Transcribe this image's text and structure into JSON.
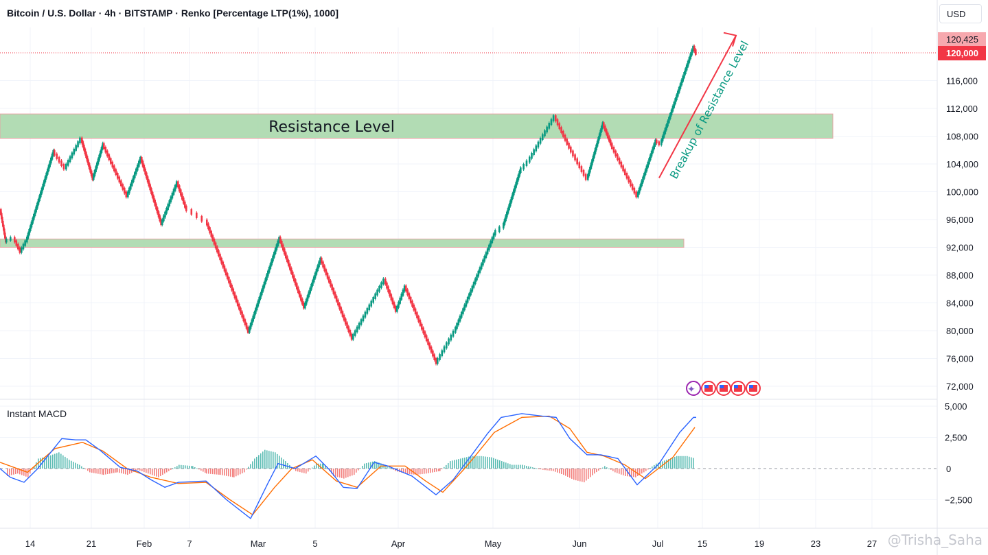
{
  "header": {
    "title": "Bitcoin / U.S. Dollar · 4h · BITSTAMP · Renko [Percentage LTP(1%), 1000]",
    "currency_button": "USD"
  },
  "indicator": {
    "label": "Instant MACD"
  },
  "watermark": "@Trisha_Saha",
  "colors": {
    "up": "#089981",
    "down": "#f23645",
    "zone": "#a5d6a7",
    "macd": "#2962ff",
    "signal": "#ff6d00",
    "arrow": "#f23645"
  },
  "chart_data": {
    "type": "renko",
    "title": "Bitcoin / U.S. Dollar · 4h · BITSTAMP · Renko [Percentage LTP(1%), 1000]",
    "y_axis": {
      "ticks": [
        72000,
        76000,
        80000,
        84000,
        88000,
        92000,
        96000,
        100000,
        104000,
        108000,
        112000,
        116000
      ],
      "labels": [
        "72,000",
        "76,000",
        "80,000",
        "84,000",
        "88,000",
        "92,000",
        "96,000",
        "100,000",
        "104,000",
        "108,000",
        "112,000",
        "116,000"
      ],
      "ylim": [
        71000,
        123500
      ]
    },
    "x_axis": {
      "labels": [
        "14",
        "21",
        "Feb",
        "7",
        "Mar",
        "5",
        "Apr",
        "May",
        "Jun",
        "Jul",
        "15",
        "19",
        "23",
        "27"
      ]
    },
    "price_labels": [
      {
        "value": 120425,
        "text": "120,425"
      },
      {
        "value": 120000,
        "text": "120,000"
      }
    ],
    "path": [
      [
        0,
        97500
      ],
      [
        8,
        93000
      ],
      [
        20,
        93500
      ],
      [
        30,
        91500
      ],
      [
        38,
        93000
      ],
      [
        78,
        106000
      ],
      [
        95,
        103500
      ],
      [
        118,
        107800
      ],
      [
        135,
        102000
      ],
      [
        150,
        107000
      ],
      [
        185,
        99500
      ],
      [
        205,
        105000
      ],
      [
        235,
        95500
      ],
      [
        258,
        101500
      ],
      [
        270,
        98000
      ],
      [
        300,
        96000
      ],
      [
        362,
        80000
      ],
      [
        407,
        93500
      ],
      [
        443,
        83500
      ],
      [
        467,
        90500
      ],
      [
        513,
        79000
      ],
      [
        560,
        87500
      ],
      [
        577,
        83000
      ],
      [
        590,
        86500
      ],
      [
        636,
        75500
      ],
      [
        662,
        80000
      ],
      [
        720,
        94000
      ],
      [
        732,
        95000
      ],
      [
        757,
        103000
      ],
      [
        770,
        104500
      ],
      [
        808,
        111000
      ],
      [
        830,
        106500
      ],
      [
        855,
        102000
      ],
      [
        878,
        110000
      ],
      [
        890,
        107000
      ],
      [
        928,
        99500
      ],
      [
        955,
        107500
      ],
      [
        962,
        107000
      ],
      [
        1010,
        121000
      ],
      [
        1014,
        120000
      ]
    ],
    "zones": [
      {
        "label": "Resistance Level",
        "low": 107700,
        "high": 111200,
        "x_start": 0,
        "x_end": 1213
      },
      {
        "label": "",
        "low": 92000,
        "high": 93200,
        "x_start": 0,
        "x_end": 996
      }
    ],
    "annotations": [
      {
        "text": "Breakup of Resistance Level",
        "type": "arrow",
        "from": [
          960,
          102000
        ],
        "to": [
          1072,
          122500
        ]
      }
    ],
    "macd": {
      "title": "Instant MACD",
      "y_ticks": [
        5000,
        2500,
        0,
        -2500
      ],
      "y_labels": [
        "5,000",
        "2,500",
        "0",
        "−2,500"
      ],
      "ylim": [
        -4200,
        5400
      ],
      "macd_line": [
        [
          0,
          0
        ],
        [
          15,
          -700
        ],
        [
          35,
          -1100
        ],
        [
          55,
          0
        ],
        [
          90,
          2400
        ],
        [
          110,
          2300
        ],
        [
          125,
          2300
        ],
        [
          145,
          1500
        ],
        [
          175,
          100
        ],
        [
          200,
          -200
        ],
        [
          220,
          -900
        ],
        [
          240,
          -1500
        ],
        [
          260,
          -1100
        ],
        [
          300,
          -1000
        ],
        [
          330,
          -2500
        ],
        [
          365,
          -4000
        ],
        [
          390,
          -1200
        ],
        [
          405,
          400
        ],
        [
          430,
          0
        ],
        [
          460,
          1000
        ],
        [
          480,
          -100
        ],
        [
          500,
          -1500
        ],
        [
          520,
          -1600
        ],
        [
          545,
          500
        ],
        [
          565,
          200
        ],
        [
          600,
          -600
        ],
        [
          635,
          -2100
        ],
        [
          660,
          -900
        ],
        [
          690,
          1300
        ],
        [
          710,
          2800
        ],
        [
          730,
          4100
        ],
        [
          760,
          4400
        ],
        [
          790,
          4200
        ],
        [
          810,
          4100
        ],
        [
          830,
          2400
        ],
        [
          855,
          1100
        ],
        [
          875,
          1100
        ],
        [
          900,
          800
        ],
        [
          928,
          -1300
        ],
        [
          960,
          400
        ],
        [
          990,
          2900
        ],
        [
          1010,
          4100
        ],
        [
          1014,
          4100
        ]
      ],
      "signal_line": [
        [
          0,
          500
        ],
        [
          40,
          -300
        ],
        [
          80,
          1600
        ],
        [
          120,
          2100
        ],
        [
          150,
          1400
        ],
        [
          185,
          0
        ],
        [
          220,
          -700
        ],
        [
          260,
          -1200
        ],
        [
          300,
          -1100
        ],
        [
          335,
          -2500
        ],
        [
          368,
          -3700
        ],
        [
          400,
          -1500
        ],
        [
          425,
          0
        ],
        [
          455,
          700
        ],
        [
          490,
          -1000
        ],
        [
          520,
          -1500
        ],
        [
          555,
          200
        ],
        [
          590,
          200
        ],
        [
          620,
          -1000
        ],
        [
          645,
          -1900
        ],
        [
          680,
          200
        ],
        [
          720,
          2900
        ],
        [
          760,
          4100
        ],
        [
          800,
          4200
        ],
        [
          830,
          3200
        ],
        [
          855,
          1300
        ],
        [
          880,
          1000
        ],
        [
          910,
          300
        ],
        [
          940,
          -800
        ],
        [
          980,
          900
        ],
        [
          1012,
          3300
        ]
      ],
      "histogram": [
        [
          10,
          -600
        ],
        [
          25,
          -400
        ],
        [
          40,
          -700
        ],
        [
          55,
          800
        ],
        [
          70,
          1000
        ],
        [
          85,
          1300
        ],
        [
          100,
          700
        ],
        [
          115,
          300
        ],
        [
          130,
          -300
        ],
        [
          150,
          -500
        ],
        [
          170,
          -300
        ],
        [
          185,
          -500
        ],
        [
          200,
          -100
        ],
        [
          215,
          -400
        ],
        [
          230,
          -700
        ],
        [
          245,
          -200
        ],
        [
          260,
          300
        ],
        [
          280,
          200
        ],
        [
          300,
          -400
        ],
        [
          320,
          -500
        ],
        [
          340,
          -700
        ],
        [
          355,
          -300
        ],
        [
          370,
          800
        ],
        [
          385,
          1500
        ],
        [
          400,
          1300
        ],
        [
          415,
          600
        ],
        [
          430,
          -200
        ],
        [
          445,
          -400
        ],
        [
          460,
          400
        ],
        [
          470,
          400
        ],
        [
          485,
          -600
        ],
        [
          500,
          -800
        ],
        [
          515,
          -500
        ],
        [
          530,
          400
        ],
        [
          545,
          600
        ],
        [
          560,
          300
        ],
        [
          575,
          -200
        ],
        [
          590,
          -400
        ],
        [
          605,
          -500
        ],
        [
          620,
          -400
        ],
        [
          640,
          -200
        ],
        [
          655,
          600
        ],
        [
          670,
          800
        ],
        [
          685,
          1000
        ],
        [
          700,
          1000
        ],
        [
          715,
          900
        ],
        [
          730,
          600
        ],
        [
          745,
          300
        ],
        [
          760,
          300
        ],
        [
          775,
          100
        ],
        [
          790,
          -100
        ],
        [
          805,
          -200
        ],
        [
          820,
          -500
        ],
        [
          835,
          -900
        ],
        [
          850,
          -1100
        ],
        [
          865,
          -400
        ],
        [
          880,
          200
        ],
        [
          895,
          -300
        ],
        [
          910,
          -600
        ],
        [
          925,
          -700
        ],
        [
          940,
          -200
        ],
        [
          955,
          400
        ],
        [
          970,
          700
        ],
        [
          985,
          1000
        ],
        [
          1000,
          1000
        ],
        [
          1012,
          800
        ]
      ]
    }
  }
}
